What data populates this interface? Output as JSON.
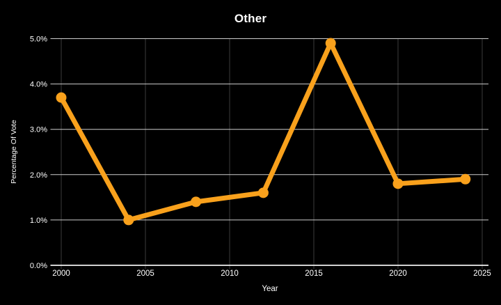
{
  "chart_data": {
    "type": "line",
    "title": "Other",
    "xlabel": "Year",
    "ylabel": "Percentage Of Vote",
    "x": [
      2000,
      2004,
      2008,
      2012,
      2016,
      2020,
      2024
    ],
    "series": [
      {
        "name": "Other",
        "values": [
          3.7,
          1.0,
          1.4,
          1.6,
          4.9,
          1.8,
          1.9
        ]
      }
    ],
    "xlim": [
      2000,
      2025
    ],
    "ylim": [
      0,
      5
    ],
    "xticks": [
      2000,
      2005,
      2010,
      2015,
      2020,
      2025
    ],
    "xtick_labels": [
      "2000",
      "2005",
      "2010",
      "2015",
      "2020",
      "2025"
    ],
    "yticks": [
      0,
      1,
      2,
      3,
      4,
      5
    ],
    "ytick_labels": [
      "0.0%",
      "1.0%",
      "2.0%",
      "3.0%",
      "4.0%",
      "5.0%"
    ],
    "grid": true,
    "legend": false,
    "layout_hints": {
      "grid_horizontal": "light lines full plot width",
      "grid_vertical": "dim lines with small ticks below axis",
      "point_style": "filled circles same color as line"
    },
    "colors": {
      "background": "#000000",
      "line": "#F9A11C",
      "point": "#F9A11C",
      "grid_horizontal": "#CDCDCD",
      "grid_vertical": "#3D3D3D",
      "axis": "#EFEFEF",
      "text": "#FFFFFF"
    }
  }
}
